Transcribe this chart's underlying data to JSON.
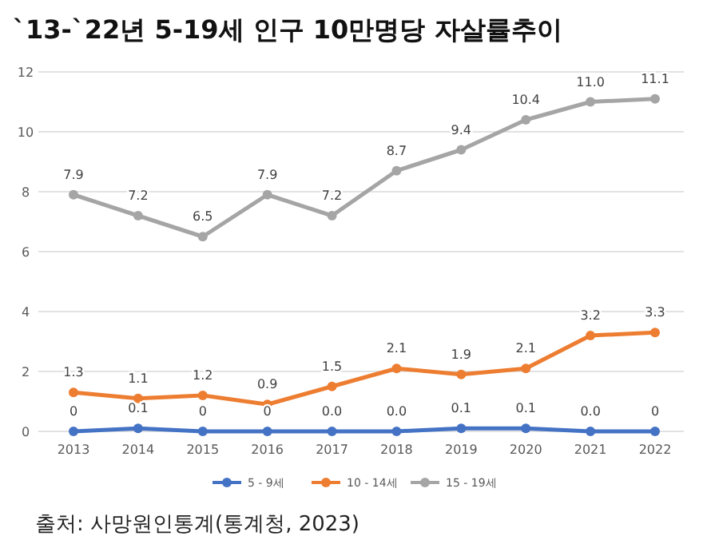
{
  "chart_data": {
    "type": "line",
    "title": "`13-`22년 5-19세 인구 10만명당 자살률추이",
    "categories": [
      "2013",
      "2014",
      "2015",
      "2016",
      "2017",
      "2018",
      "2019",
      "2020",
      "2021",
      "2022"
    ],
    "series": [
      {
        "name": "5 - 9세",
        "color": "#4472c4",
        "values": [
          0,
          0.1,
          0,
          0,
          0,
          0,
          0.1,
          0.1,
          0,
          0
        ],
        "value_labels": [
          "0",
          "0.1",
          "0",
          "0",
          "0.0",
          "0.0",
          "0.1",
          "0.1",
          "0.0",
          "0"
        ]
      },
      {
        "name": "10 - 14세",
        "color": "#ed7d31",
        "values": [
          1.3,
          1.1,
          1.2,
          0.9,
          1.5,
          2.1,
          1.9,
          2.1,
          3.2,
          3.3
        ],
        "value_labels": [
          "1.3",
          "1.1",
          "1.2",
          "0.9",
          "1.5",
          "2.1",
          "1.9",
          "2.1",
          "3.2",
          "3.3"
        ]
      },
      {
        "name": "15 - 19세",
        "color": "#a5a5a5",
        "values": [
          7.9,
          7.2,
          6.5,
          7.9,
          7.2,
          8.7,
          9.4,
          10.4,
          11.0,
          11.1
        ],
        "value_labels": [
          "7.9",
          "7.2",
          "6.5",
          "7.9",
          "7.2",
          "8.7",
          "9.4",
          "10.4",
          "11.0",
          "11.1"
        ]
      }
    ],
    "ylim": [
      0,
      12
    ],
    "yticks": [
      0,
      2,
      4,
      6,
      8,
      10,
      12
    ],
    "grid": "y",
    "legend": "bottom",
    "marker": "circle",
    "line_style": "solid",
    "annotations": [
      "출처: 사망원인통계(통계청, 2023)"
    ]
  }
}
